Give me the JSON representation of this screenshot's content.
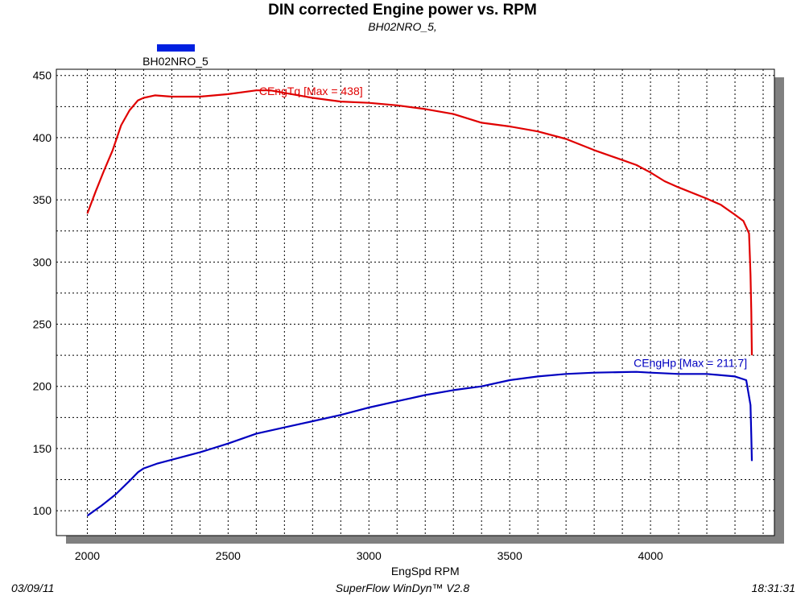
{
  "header": {
    "title": "DIN corrected Engine power vs. RPM",
    "subtitle": "BH02NRO_5,"
  },
  "footer": {
    "date": "03/09/11",
    "software": "SuperFlow WinDyn™ V2.8",
    "time": "18:31:31"
  },
  "colors": {
    "torque": "#e00000",
    "power": "#0000c0",
    "legend_swatch": "#0020e0",
    "grid": "#000000",
    "shadow": "#808080"
  },
  "chart_data": {
    "type": "line",
    "title": "DIN corrected Engine power vs. RPM",
    "subtitle": "BH02NRO_5,",
    "xlabel": "EngSpd  RPM",
    "ylabel": "",
    "xlim": [
      1890,
      4440
    ],
    "ylim": [
      80,
      455
    ],
    "xticks": [
      2000,
      2500,
      3000,
      3500,
      4000
    ],
    "yticks": [
      100,
      150,
      200,
      250,
      300,
      350,
      400,
      450
    ],
    "grid": true,
    "legend": {
      "position": "top-left",
      "entries": [
        "BH02NRO_5"
      ]
    },
    "series": [
      {
        "label": "CEngTq [Max = 438]",
        "color": "#e00000",
        "points": [
          [
            2000,
            339
          ],
          [
            2030,
            357
          ],
          [
            2060,
            374
          ],
          [
            2090,
            390
          ],
          [
            2120,
            410
          ],
          [
            2150,
            422
          ],
          [
            2180,
            430
          ],
          [
            2200,
            432
          ],
          [
            2240,
            434
          ],
          [
            2300,
            433
          ],
          [
            2400,
            433
          ],
          [
            2500,
            435
          ],
          [
            2600,
            438
          ],
          [
            2650,
            438
          ],
          [
            2700,
            436
          ],
          [
            2800,
            432
          ],
          [
            2900,
            429
          ],
          [
            3000,
            428
          ],
          [
            3100,
            426
          ],
          [
            3200,
            423
          ],
          [
            3300,
            419
          ],
          [
            3400,
            412
          ],
          [
            3500,
            409
          ],
          [
            3600,
            405
          ],
          [
            3700,
            399
          ],
          [
            3800,
            390
          ],
          [
            3900,
            382
          ],
          [
            3950,
            378
          ],
          [
            4000,
            372
          ],
          [
            4050,
            365
          ],
          [
            4100,
            360
          ],
          [
            4200,
            351
          ],
          [
            4250,
            346
          ],
          [
            4300,
            338
          ],
          [
            4330,
            333
          ],
          [
            4350,
            323
          ],
          [
            4355,
            290
          ],
          [
            4358,
            260
          ],
          [
            4360,
            225
          ]
        ]
      },
      {
        "label": "CEngHp [Max = 211.7]",
        "color": "#0000c0",
        "points": [
          [
            2000,
            96
          ],
          [
            2050,
            104
          ],
          [
            2100,
            113
          ],
          [
            2150,
            124
          ],
          [
            2180,
            131
          ],
          [
            2200,
            134
          ],
          [
            2250,
            138
          ],
          [
            2300,
            141
          ],
          [
            2400,
            147
          ],
          [
            2500,
            154
          ],
          [
            2600,
            162
          ],
          [
            2700,
            167
          ],
          [
            2800,
            172
          ],
          [
            2900,
            177
          ],
          [
            3000,
            183
          ],
          [
            3100,
            188
          ],
          [
            3200,
            193
          ],
          [
            3300,
            197
          ],
          [
            3400,
            200
          ],
          [
            3500,
            205
          ],
          [
            3600,
            208
          ],
          [
            3700,
            210
          ],
          [
            3800,
            211
          ],
          [
            3900,
            211.5
          ],
          [
            3950,
            211.7
          ],
          [
            4000,
            211
          ],
          [
            4100,
            210
          ],
          [
            4200,
            210
          ],
          [
            4300,
            208
          ],
          [
            4340,
            205
          ],
          [
            4355,
            185
          ],
          [
            4358,
            160
          ],
          [
            4360,
            140
          ]
        ]
      }
    ]
  }
}
